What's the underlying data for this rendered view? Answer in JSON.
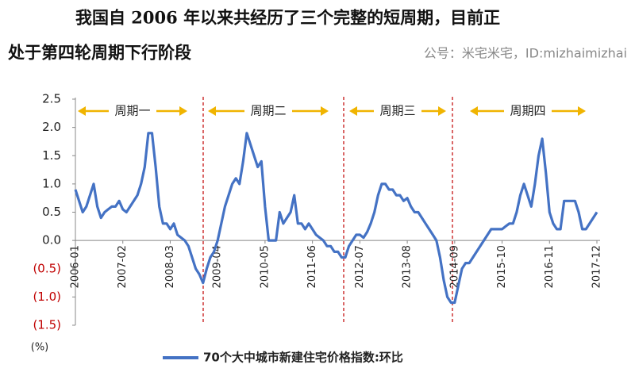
{
  "chart_data": {
    "type": "line",
    "title_lines": [
      "我国自 2006 年以来共经历了三个完整的短周期，目前正",
      "处于第四轮周期下行阶段"
    ],
    "source": "公号：米宅米宅，ID:mizhaimizhai",
    "y_unit": "(%)",
    "annotations": [
      "周期一",
      "周期二",
      "周期三",
      "周期四"
    ],
    "categories": [
      "2006-01",
      null,
      null,
      null,
      null,
      null,
      null,
      null,
      null,
      null,
      null,
      null,
      null,
      "2007-02",
      null,
      null,
      null,
      null,
      null,
      null,
      null,
      null,
      null,
      null,
      null,
      null,
      "2008-03",
      null,
      null,
      null,
      null,
      null,
      null,
      null,
      null,
      null,
      null,
      null,
      null,
      "2009-04",
      null,
      null,
      null,
      null,
      null,
      null,
      null,
      null,
      null,
      null,
      null,
      null,
      "2010-05",
      null,
      null,
      null,
      null,
      null,
      null,
      null,
      null,
      null,
      null,
      null,
      null,
      "2011-06",
      null,
      null,
      null,
      null,
      null,
      null,
      null,
      null,
      null,
      null,
      null,
      null,
      "2012-07",
      null,
      null,
      null,
      null,
      null,
      null,
      null,
      null,
      null,
      null,
      null,
      null,
      "2013-08",
      null,
      null,
      null,
      null,
      null,
      null,
      null,
      null,
      null,
      null,
      null,
      null,
      "2014-09",
      null,
      null,
      null,
      null,
      null,
      null,
      null,
      null,
      null,
      null,
      null,
      null,
      "2015-10",
      null,
      null,
      null,
      null,
      null,
      null,
      null,
      null,
      null,
      null,
      null,
      null,
      "2016-11",
      null,
      null,
      null,
      null,
      null,
      null,
      null,
      null,
      null,
      null,
      null,
      null,
      "2017-12"
    ],
    "series": [
      {
        "name": "70个大中城市新建住宅价格指数:环比",
        "color": "#4472c4",
        "values": [
          0.9,
          0.7,
          0.5,
          0.6,
          0.8,
          1.0,
          0.6,
          0.4,
          0.5,
          0.55,
          0.6,
          0.6,
          0.7,
          0.55,
          0.5,
          0.6,
          0.7,
          0.8,
          1.0,
          1.3,
          1.9,
          1.9,
          1.3,
          0.6,
          0.3,
          0.3,
          0.2,
          0.3,
          0.1,
          0.05,
          0.0,
          -0.1,
          -0.3,
          -0.5,
          -0.6,
          -0.75,
          -0.5,
          -0.3,
          -0.2,
          0.0,
          0.3,
          0.6,
          0.8,
          1.0,
          1.1,
          1.0,
          1.4,
          1.9,
          1.7,
          1.5,
          1.3,
          1.4,
          0.6,
          0.0,
          0.0,
          0.0,
          0.5,
          0.3,
          0.4,
          0.5,
          0.8,
          0.3,
          0.3,
          0.2,
          0.3,
          0.2,
          0.1,
          0.05,
          0.0,
          -0.1,
          -0.1,
          -0.2,
          -0.2,
          -0.3,
          -0.3,
          -0.1,
          0.0,
          0.1,
          0.1,
          0.05,
          0.15,
          0.3,
          0.5,
          0.8,
          1.0,
          1.0,
          0.9,
          0.9,
          0.8,
          0.8,
          0.7,
          0.75,
          0.6,
          0.5,
          0.5,
          0.4,
          0.3,
          0.2,
          0.1,
          0.0,
          -0.3,
          -0.7,
          -1.0,
          -1.1,
          -1.1,
          -0.8,
          -0.5,
          -0.4,
          -0.4,
          -0.3,
          -0.2,
          -0.1,
          0.0,
          0.1,
          0.2,
          0.2,
          0.2,
          0.2,
          0.25,
          0.3,
          0.3,
          0.5,
          0.8,
          1.0,
          0.8,
          0.6,
          1.0,
          1.5,
          1.8,
          1.2,
          0.5,
          0.3,
          0.2,
          0.2,
          0.7,
          0.7,
          0.7,
          0.7,
          0.5,
          0.2,
          0.2,
          0.3,
          0.4,
          0.5
        ]
      }
    ],
    "ylim": [
      -1.5,
      2.5
    ],
    "yticks": [
      2.5,
      {
        "value": 2.0,
        "label": "2.0"
      },
      1.5,
      {
        "value": 1.0,
        "label": "1.0"
      },
      0.5,
      {
        "value": 0.0,
        "label": "0.0"
      },
      {
        "value": -0.5,
        "label": "(0.5)"
      },
      {
        "value": -1.0,
        "label": "(1.0)"
      },
      {
        "value": -1.5,
        "label": "(1.5)"
      }
    ]
  }
}
